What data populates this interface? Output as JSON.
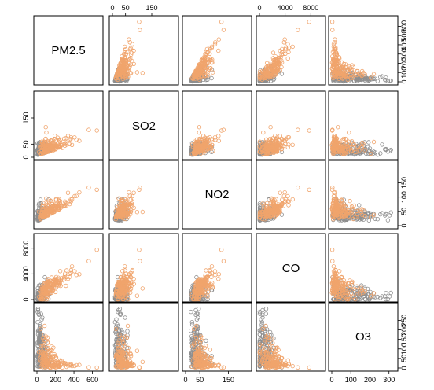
{
  "chart_data": {
    "type": "scatter",
    "chart_kind": "scatterplot-matrix",
    "title": "",
    "variables": [
      "PM2.5",
      "SO2",
      "NO2",
      "CO",
      "O3"
    ],
    "ranges": {
      "PM2.5": [
        0,
        680
      ],
      "SO2": [
        0,
        240
      ],
      "NO2": [
        0,
        220
      ],
      "CO": [
        0,
        9800
      ],
      "O3": [
        0,
        330
      ]
    },
    "ticks": {
      "PM2.5": [
        "0",
        "200",
        "400",
        "600"
      ],
      "SO2": [
        "0",
        "50",
        "150"
      ],
      "NO2": [
        "0",
        "50",
        "150"
      ],
      "CO": [
        "0",
        "4000",
        "8000"
      ],
      "O3": [
        "0",
        "100",
        "200",
        "300"
      ]
    },
    "tick_values": {
      "PM2.5": [
        0,
        200,
        400,
        600
      ],
      "SO2": [
        0,
        50,
        150
      ],
      "NO2": [
        0,
        50,
        150
      ],
      "CO": [
        0,
        4000,
        8000
      ],
      "O3": [
        0,
        100,
        200,
        300
      ]
    },
    "right_ticks": {
      "PM2.5": [
        "0",
        "100",
        "200",
        "300",
        "400",
        "500",
        "600"
      ],
      "NO2": [
        "0",
        "50",
        "100",
        "150"
      ],
      "O3": [
        "0",
        "50",
        "100",
        "150",
        "200",
        "250"
      ]
    },
    "right_tick_values": {
      "PM2.5": [
        0,
        100,
        200,
        300,
        400,
        500,
        600
      ],
      "NO2": [
        0,
        50,
        100,
        150
      ],
      "O3": [
        0,
        50,
        100,
        150,
        200,
        250
      ]
    },
    "top_ticks": {
      "SO2": [
        "0",
        "50",
        "150"
      ],
      "CO": [
        "0",
        "4000",
        "8000"
      ]
    },
    "top_tick_values": {
      "SO2": [
        0,
        50,
        150
      ],
      "CO": [
        0,
        4000,
        8000
      ]
    },
    "series": [
      {
        "color": "#8f8f8f",
        "marker": "open-circle"
      },
      {
        "color": "#f0a46c",
        "marker": "open-circle"
      }
    ],
    "grid": false,
    "legend": "none"
  }
}
